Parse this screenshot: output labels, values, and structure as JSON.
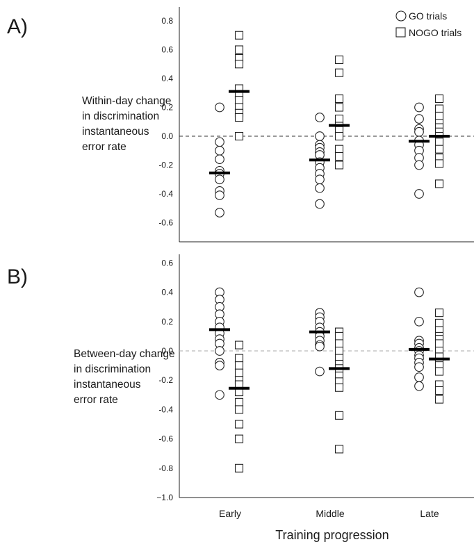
{
  "chart_data": [
    {
      "panel": "A)",
      "type": "scatter",
      "ylabel_lines": [
        "Within-day change",
        "in discrimination",
        "instantaneous",
        "error rate"
      ],
      "categories": [
        "Early",
        "Middle",
        "Late"
      ],
      "yticks": [
        "0.8",
        "0.6",
        "0.4",
        "0.2",
        "0.0",
        "-0.2",
        "-0.4",
        "-0.6"
      ],
      "ylim": [
        -0.74,
        0.9
      ],
      "zero_line_color": "#333333",
      "series": [
        {
          "name": "GO trials",
          "marker": "circle",
          "values": [
            [
              0.2,
              -0.04,
              -0.1,
              -0.16,
              -0.24,
              -0.26,
              -0.3,
              -0.38,
              -0.41,
              -0.53
            ],
            [
              0.13,
              0.0,
              -0.06,
              -0.08,
              -0.11,
              -0.13,
              -0.18,
              -0.22,
              -0.26,
              -0.3,
              -0.36,
              -0.47
            ],
            [
              0.2,
              0.12,
              0.05,
              0.03,
              -0.03,
              -0.06,
              -0.1,
              -0.15,
              -0.2,
              -0.4
            ]
          ],
          "means": [
            -0.255,
            -0.165,
            -0.035
          ]
        },
        {
          "name": "NOGO trials",
          "marker": "square",
          "values": [
            [
              0.7,
              0.6,
              0.54,
              0.5,
              0.33,
              0.29,
              0.25,
              0.2,
              0.16,
              0.13,
              0.0
            ],
            [
              0.53,
              0.44,
              0.26,
              0.2,
              0.12,
              0.07,
              0.04,
              0.0,
              -0.09,
              -0.14,
              -0.2
            ],
            [
              0.26,
              0.19,
              0.14,
              0.09,
              0.06,
              0.03,
              0.0,
              -0.04,
              -0.09,
              -0.15,
              -0.19,
              -0.33
            ]
          ],
          "means": [
            0.31,
            0.075,
            0.0
          ]
        }
      ]
    },
    {
      "panel": "B)",
      "type": "scatter",
      "ylabel_lines": [
        "Between-day change",
        "in discrimination",
        "instantaneous",
        "error rate"
      ],
      "categories": [
        "Early",
        "Middle",
        "Late"
      ],
      "xlabel": "Training progression",
      "yticks": [
        "0.6",
        "0.4",
        "0.2",
        "0.0",
        "-0.2",
        "-0.4",
        "-0.6",
        "-0.8",
        "−1.0"
      ],
      "ylim": [
        -1.0,
        0.6
      ],
      "zero_line_color": "#aaaaaa",
      "series": [
        {
          "name": "GO trials",
          "marker": "circle",
          "values": [
            [
              0.4,
              0.35,
              0.3,
              0.25,
              0.2,
              0.16,
              0.12,
              0.08,
              0.05,
              0.0,
              -0.08,
              -0.1,
              -0.3
            ],
            [
              0.26,
              0.23,
              0.2,
              0.16,
              0.13,
              0.1,
              0.07,
              0.04,
              0.03,
              -0.14
            ],
            [
              0.4,
              0.2,
              0.07,
              0.05,
              0.02,
              0.0,
              -0.03,
              -0.05,
              -0.08,
              -0.11,
              -0.18,
              -0.24
            ]
          ],
          "means": [
            0.145,
            0.13,
            0.01
          ]
        },
        {
          "name": "NOGO trials",
          "marker": "square",
          "values": [
            [
              0.04,
              -0.05,
              -0.1,
              -0.15,
              -0.2,
              -0.23,
              -0.28,
              -0.35,
              -0.4,
              -0.5,
              -0.6,
              -0.8
            ],
            [
              0.13,
              0.1,
              0.05,
              0.0,
              -0.05,
              -0.09,
              -0.12,
              -0.17,
              -0.21,
              -0.25,
              -0.44,
              -0.67
            ],
            [
              0.26,
              0.19,
              0.14,
              0.1,
              0.08,
              0.05,
              0.0,
              -0.04,
              -0.08,
              -0.1,
              -0.14,
              -0.23,
              -0.27,
              -0.33
            ]
          ],
          "means": [
            -0.255,
            -0.12,
            -0.055
          ]
        }
      ]
    }
  ],
  "legend": {
    "placement": "top-right",
    "go_label": "GO trials",
    "nogo_label": "NOGO trials"
  }
}
